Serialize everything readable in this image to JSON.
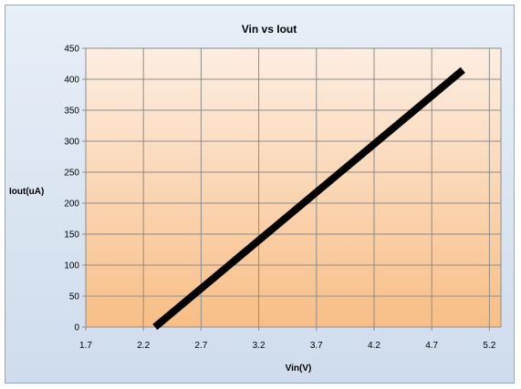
{
  "chart_data": {
    "type": "line",
    "title": "Vin vs Iout",
    "xlabel": "Vin(V)",
    "ylabel": "Iout(uA)",
    "xlim": [
      1.7,
      5.3
    ],
    "ylim": [
      0,
      450
    ],
    "xticks": [
      1.7,
      2.2,
      2.7,
      3.2,
      3.7,
      4.2,
      4.7,
      5.2
    ],
    "yticks": [
      0,
      50,
      100,
      150,
      200,
      250,
      300,
      350,
      400,
      450
    ],
    "grid": true,
    "legend": "none",
    "series": [
      {
        "color": "#000000",
        "points": [
          {
            "x": 2.3,
            "y": 0
          },
          {
            "x": 4.97,
            "y": 415
          }
        ]
      }
    ],
    "colors": {
      "plot_top": "#fdeee2",
      "plot_bottom": "#f8be86",
      "grid": "#8c8c8c",
      "frame_border": "#8ea9c9"
    }
  }
}
